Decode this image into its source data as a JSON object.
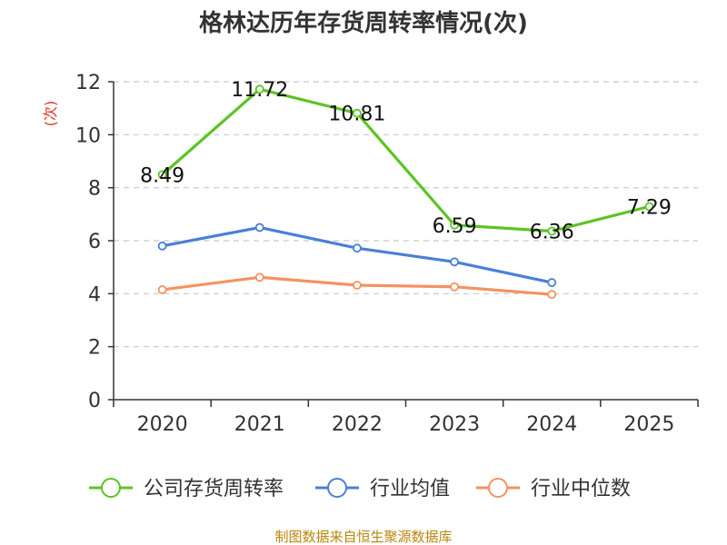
{
  "chart_data": {
    "type": "line",
    "title": "格林达历年存货周转率情况(次)",
    "ylabel": "(次)",
    "xlabel": "",
    "categories": [
      "2020",
      "2021",
      "2022",
      "2023",
      "2024",
      "2025"
    ],
    "ylim": [
      0,
      12
    ],
    "yticks": [
      0,
      2,
      4,
      6,
      8,
      10,
      12
    ],
    "grid": "horizontal-dashed",
    "legend_position": "bottom",
    "series": [
      {
        "name": "公司存货周转率",
        "color": "#5cc424",
        "values": [
          8.49,
          11.72,
          10.81,
          6.59,
          6.36,
          7.29
        ],
        "labels": [
          "8.49",
          "11.72",
          "10.81",
          "6.59",
          "6.36",
          "7.29"
        ]
      },
      {
        "name": "行业均值",
        "color": "#4a7fd8",
        "values": [
          5.8,
          6.5,
          5.72,
          5.2,
          4.42,
          null
        ]
      },
      {
        "name": "行业中位数",
        "color": "#f49261",
        "values": [
          4.15,
          4.62,
          4.32,
          4.26,
          3.97,
          null
        ]
      }
    ]
  },
  "source_note": "制图数据来自恒生聚源数据库"
}
